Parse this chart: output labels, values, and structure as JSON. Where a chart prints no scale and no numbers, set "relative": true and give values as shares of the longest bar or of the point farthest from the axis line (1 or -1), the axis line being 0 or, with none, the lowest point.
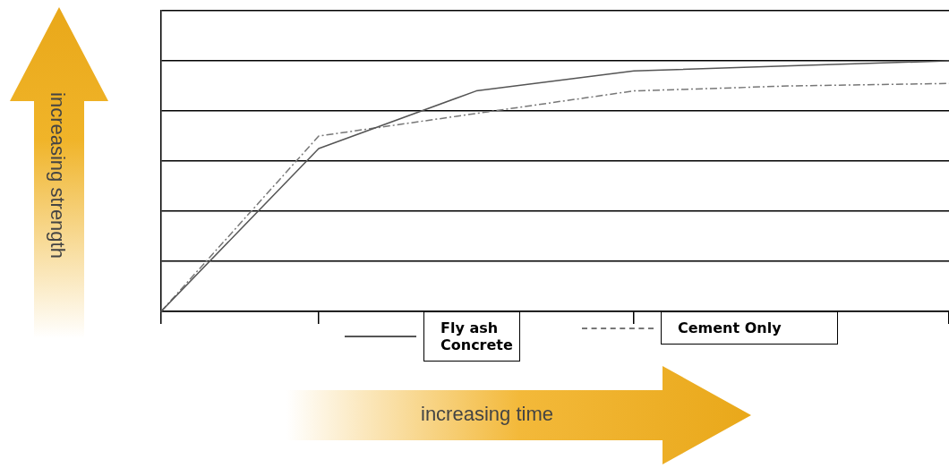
{
  "chart_data": {
    "type": "line",
    "xlabel": "increasing time",
    "ylabel": "increasing strength",
    "relative": true,
    "categories": [
      null,
      null,
      null,
      null,
      null,
      null
    ],
    "series": [
      {
        "name": "Fly ash Concrete",
        "color": "#555555",
        "line_style": "solid",
        "values": [
          0,
          0.65,
          0.88,
          0.96,
          0.98,
          1
        ]
      },
      {
        "name": "Cement Only",
        "color": "#777777",
        "line_style": "dashed",
        "values": [
          0,
          0.7,
          0.79,
          0.88,
          0.9,
          0.91
        ]
      }
    ],
    "grid": "y",
    "legend": "bottom",
    "tick_labels": false,
    "marker": "none"
  }
}
